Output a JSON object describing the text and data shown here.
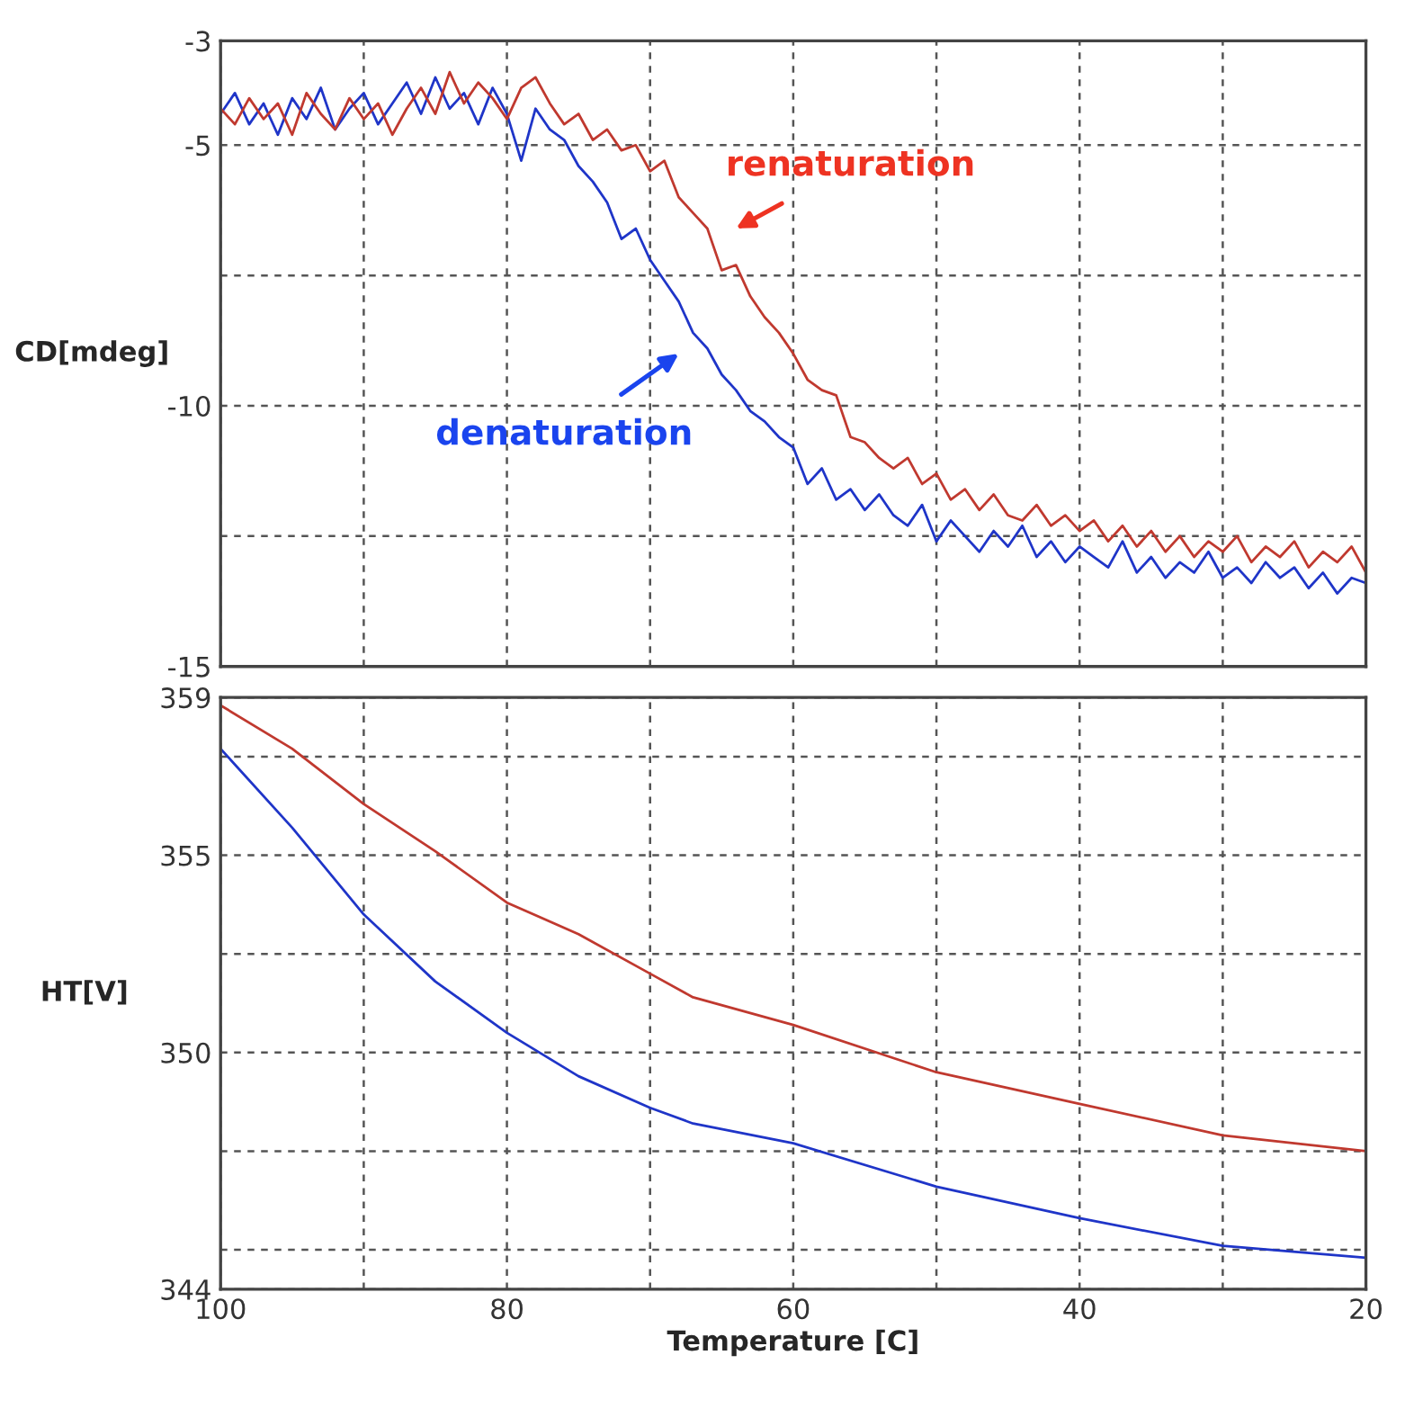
{
  "chart_data": [
    {
      "type": "line",
      "ylabel": "CD[mdeg]",
      "x": [
        100,
        99,
        98,
        97,
        96,
        95,
        94,
        93,
        92,
        91,
        90,
        89,
        88,
        87,
        86,
        85,
        84,
        83,
        82,
        81,
        80,
        79,
        78,
        77,
        76,
        75,
        74,
        73,
        72,
        71,
        70,
        69,
        68,
        67,
        66,
        65,
        64,
        63,
        62,
        61,
        60,
        59,
        58,
        57,
        56,
        55,
        54,
        53,
        52,
        51,
        50,
        49,
        48,
        47,
        46,
        45,
        44,
        43,
        42,
        41,
        40,
        39,
        38,
        37,
        36,
        35,
        34,
        33,
        32,
        31,
        30,
        29,
        28,
        27,
        26,
        25,
        24,
        23,
        22,
        21,
        20
      ],
      "series": [
        {
          "color": "#1f35c8",
          "values": [
            -4.4,
            -4.0,
            -4.6,
            -4.2,
            -4.8,
            -4.1,
            -4.5,
            -3.9,
            -4.7,
            -4.3,
            -4.0,
            -4.6,
            -4.2,
            -3.8,
            -4.4,
            -3.7,
            -4.3,
            -4.0,
            -4.6,
            -3.9,
            -4.4,
            -5.3,
            -4.3,
            -4.7,
            -4.9,
            -5.4,
            -5.7,
            -6.1,
            -6.8,
            -6.6,
            -7.2,
            -7.6,
            -8.0,
            -8.6,
            -8.9,
            -9.4,
            -9.7,
            -10.1,
            -10.3,
            -10.6,
            -10.8,
            -11.5,
            -11.2,
            -11.8,
            -11.6,
            -12.0,
            -11.7,
            -12.1,
            -12.3,
            -11.9,
            -12.6,
            -12.2,
            -12.5,
            -12.8,
            -12.4,
            -12.7,
            -12.3,
            -12.9,
            -12.6,
            -13.0,
            -12.7,
            -12.9,
            -13.1,
            -12.6,
            -13.2,
            -12.9,
            -13.3,
            -13.0,
            -13.2,
            -12.8,
            -13.3,
            -13.1,
            -13.4,
            -13.0,
            -13.3,
            -13.1,
            -13.5,
            -13.2,
            -13.6,
            -13.3,
            -13.4
          ]
        },
        {
          "color": "#c0392f",
          "values": [
            -4.3,
            -4.6,
            -4.1,
            -4.5,
            -4.2,
            -4.8,
            -4.0,
            -4.4,
            -4.7,
            -4.1,
            -4.5,
            -4.2,
            -4.8,
            -4.3,
            -3.9,
            -4.4,
            -3.6,
            -4.2,
            -3.8,
            -4.1,
            -4.5,
            -3.9,
            -3.7,
            -4.2,
            -4.6,
            -4.4,
            -4.9,
            -4.7,
            -5.1,
            -5.0,
            -5.5,
            -5.3,
            -6.0,
            -6.3,
            -6.6,
            -7.4,
            -7.3,
            -7.9,
            -8.3,
            -8.6,
            -9.0,
            -9.5,
            -9.7,
            -9.8,
            -10.6,
            -10.7,
            -11.0,
            -11.2,
            -11.0,
            -11.5,
            -11.3,
            -11.8,
            -11.6,
            -12.0,
            -11.7,
            -12.1,
            -12.2,
            -11.9,
            -12.3,
            -12.1,
            -12.4,
            -12.2,
            -12.6,
            -12.3,
            -12.7,
            -12.4,
            -12.8,
            -12.5,
            -12.9,
            -12.6,
            -12.8,
            -12.5,
            -13.0,
            -12.7,
            -12.9,
            -12.6,
            -13.1,
            -12.8,
            -13.0,
            -12.7,
            -13.2
          ]
        }
      ],
      "xlim": [
        100,
        20
      ],
      "xticks": [
        100,
        {
          "value": 90,
          "label": null
        },
        80,
        {
          "value": 70,
          "label": null
        },
        60,
        {
          "value": 50,
          "label": null
        },
        40,
        {
          "value": 30,
          "label": null
        },
        20
      ],
      "ylim": [
        -15,
        -3
      ],
      "yticks": [
        -15,
        {
          "value": -12.5,
          "label": null
        },
        -10,
        {
          "value": -7.5,
          "label": null
        },
        -5,
        -3
      ],
      "grid": true,
      "tick_labels": "y",
      "annotations": [
        "renaturation",
        "denaturation"
      ]
    },
    {
      "type": "line",
      "ylabel": "HT[V]",
      "xlabel": "Temperature [C]",
      "series": [
        {
          "color": "#c0392f",
          "x": [
            100,
            95,
            90,
            85,
            80,
            75,
            70,
            67,
            60,
            50,
            40,
            30,
            20
          ],
          "values": [
            358.8,
            357.7,
            356.3,
            355.1,
            353.8,
            353.0,
            352.0,
            351.4,
            350.7,
            349.5,
            348.7,
            347.9,
            347.5
          ]
        },
        {
          "color": "#1f35c8",
          "x": [
            100,
            95,
            90,
            85,
            80,
            75,
            70,
            67,
            60,
            50,
            40,
            30,
            20
          ],
          "values": [
            357.7,
            355.7,
            353.5,
            351.8,
            350.5,
            349.4,
            348.6,
            348.2,
            347.7,
            346.6,
            345.8,
            345.1,
            344.8
          ]
        }
      ],
      "xlim": [
        100,
        20
      ],
      "xticks": [
        100,
        {
          "value": 90,
          "label": null
        },
        80,
        {
          "value": 70,
          "label": null
        },
        60,
        {
          "value": 50,
          "label": null
        },
        40,
        {
          "value": 30,
          "label": null
        },
        20
      ],
      "ylim": [
        344,
        359
      ],
      "yticks": [
        344,
        {
          "value": 345,
          "label": null
        },
        {
          "value": 347.5,
          "label": null
        },
        350,
        {
          "value": 352.5,
          "label": null
        },
        355,
        {
          "value": 357.5,
          "label": null
        },
        359
      ],
      "grid": true
    }
  ]
}
